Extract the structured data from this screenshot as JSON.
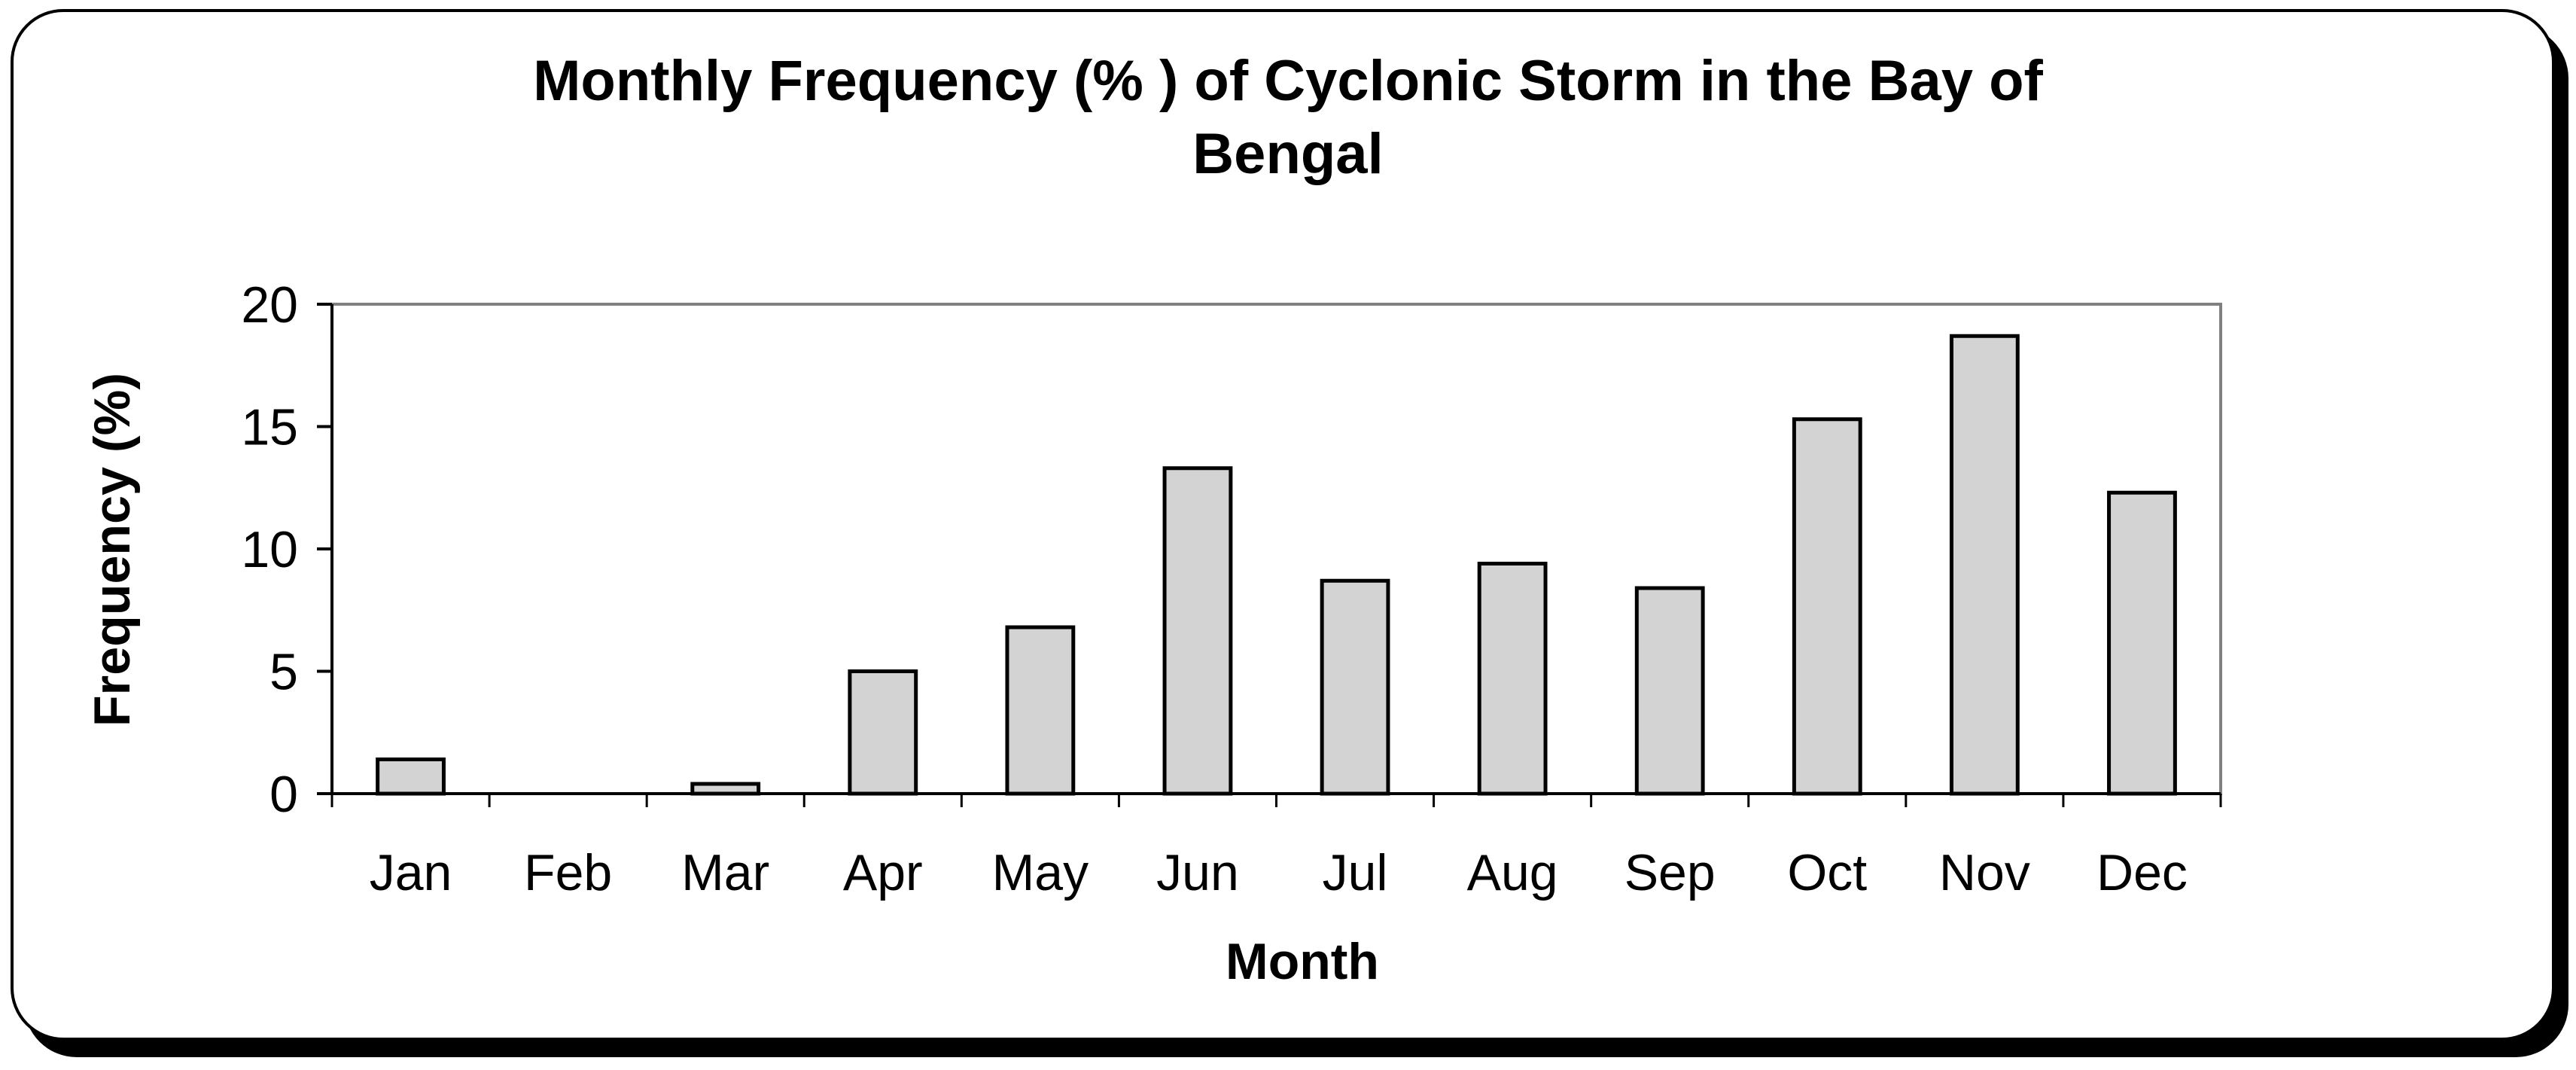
{
  "chart_data": {
    "type": "bar",
    "title_lines": [
      "Monthly Frequency (% ) of Cyclonic Storm in the Bay of",
      "Bengal"
    ],
    "xlabel": "Month",
    "ylabel": "Frequency (%)",
    "categories": [
      "Jan",
      "Feb",
      "Mar",
      "Apr",
      "May",
      "Jun",
      "Jul",
      "Aug",
      "Sep",
      "Oct",
      "Nov",
      "Dec"
    ],
    "values": [
      1.4,
      0,
      0.4,
      5.0,
      6.8,
      13.3,
      8.7,
      9.4,
      8.4,
      15.3,
      18.7,
      12.3
    ],
    "ylim": [
      0,
      20
    ],
    "yticks": [
      "0",
      "5",
      "10",
      "15",
      "20"
    ],
    "ytick_values": [
      0,
      5,
      10,
      15,
      20
    ],
    "grid": false,
    "legend": "none",
    "bar_color": "#d3d3d3",
    "bar_outline": "#000000",
    "plot_border": "#808080"
  }
}
